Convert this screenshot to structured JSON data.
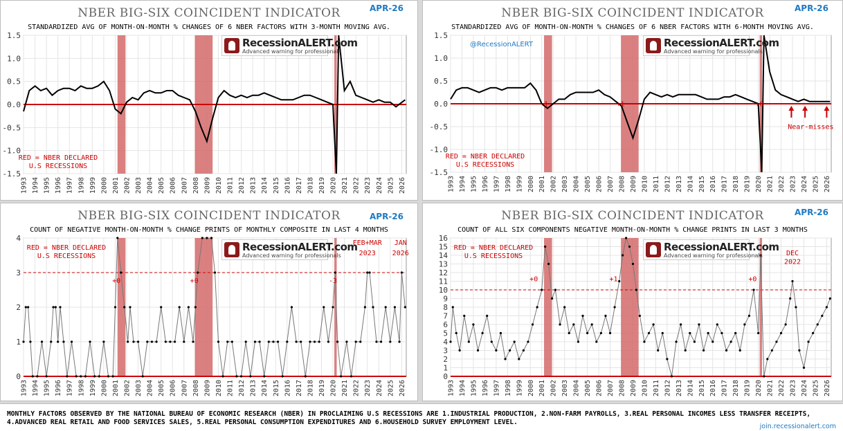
{
  "footer": {
    "line1": "MONTHLY FACTORS OBSERVED BY THE NATIONAL BUREAU OF ECONOMIC RESEARCH (NBER) IN PROCLAIMING U.S RECESSIONS ARE 1.INDUSTRIAL PRODUCTION, 2.NON-FARM PAYROLLS, 3.REAL PERSONAL INCOMES LESS TRANSFER RECEIPTS,",
    "line2": "4.ADVANCED REAL RETAIL AND FOOD SERVICES SALES, 5.REAL PERSONAL CONSUMPTION EXPENDITURES AND 6.HOUSEHOLD SURVEY EMPLOYMENT LEVEL.",
    "url": "join.recessionalert.com"
  },
  "logo": {
    "name": "RecessionALERT.com",
    "tagline": "Advanced warning for professionals"
  },
  "handle": "@RecessionALERT",
  "colors": {
    "recession": "#d46a6a",
    "red": "#cc0000",
    "series": "#000000",
    "raw": "#b0b0b0",
    "date": "#1f7ac3"
  },
  "recessions": [
    [
      2001.2,
      2001.9
    ],
    [
      2007.95,
      2009.5
    ],
    [
      2020.12,
      2020.33
    ]
  ],
  "x_ticks": [
    "1993",
    "1994",
    "1995",
    "1996",
    "1997",
    "1998",
    "1999",
    "2000",
    "2001",
    "2002",
    "2003",
    "2004",
    "2005",
    "2006",
    "2007",
    "2008",
    "2009",
    "2010",
    "2011",
    "2012",
    "2013",
    "2014",
    "2015",
    "2016",
    "2017",
    "2018",
    "2019",
    "2020",
    "2021",
    "2022",
    "2023",
    "2024",
    "2025",
    "2026"
  ],
  "chart_data": [
    {
      "id": "tl",
      "type": "line",
      "title": "NBER BIG-SIX COINCIDENT INDICATOR",
      "date": "APR-26",
      "subtitle": "STANDARDIZED AVG OF MONTH-ON-MONTH % CHANGES OF 6 NBER FACTORS WITH 3-MONTH MOVING AVG.",
      "xlim": [
        1993,
        2026.4
      ],
      "ylim": [
        -1.5,
        1.5
      ],
      "y_ticks": [
        "1.5",
        "1.0",
        "0.5",
        "0.0",
        "-0.5",
        "-1.0",
        "-1.5"
      ],
      "y_tick_values": [
        1.5,
        1.0,
        0.5,
        0.0,
        -0.5,
        -1.0,
        -1.5
      ],
      "zero_line": 0,
      "legend_text": [
        "RED = NBER DECLARED",
        "U.S RECESSIONS"
      ],
      "series": [
        {
          "name": "3-month moving average",
          "x": [
            1993,
            1993.5,
            1994,
            1994.5,
            1995,
            1995.5,
            1996,
            1996.5,
            1997,
            1997.5,
            1998,
            1998.5,
            1999,
            1999.5,
            2000,
            2000.5,
            2001,
            2001.5,
            2002,
            2002.5,
            2003,
            2003.5,
            2004,
            2004.5,
            2005,
            2005.5,
            2006,
            2006.5,
            2007,
            2007.5,
            2008,
            2008.5,
            2009,
            2009.5,
            2010,
            2010.5,
            2011,
            2011.5,
            2012,
            2012.5,
            2013,
            2013.5,
            2014,
            2014.5,
            2015,
            2015.5,
            2016,
            2016.5,
            2017,
            2017.5,
            2018,
            2018.5,
            2019,
            2019.5,
            2020,
            2020.3,
            2020.5,
            2021,
            2021.5,
            2022,
            2022.5,
            2023,
            2023.5,
            2024,
            2024.5,
            2025,
            2025.5,
            2026.3
          ],
          "y": [
            -0.15,
            0.3,
            0.4,
            0.3,
            0.35,
            0.2,
            0.3,
            0.35,
            0.35,
            0.3,
            0.4,
            0.35,
            0.35,
            0.4,
            0.5,
            0.3,
            -0.1,
            -0.2,
            0.05,
            0.15,
            0.1,
            0.25,
            0.3,
            0.25,
            0.25,
            0.3,
            0.3,
            0.2,
            0.15,
            0.1,
            -0.15,
            -0.5,
            -0.8,
            -0.3,
            0.15,
            0.3,
            0.2,
            0.15,
            0.2,
            0.15,
            0.2,
            0.2,
            0.25,
            0.2,
            0.15,
            0.1,
            0.1,
            0.1,
            0.15,
            0.2,
            0.2,
            0.15,
            0.1,
            0.05,
            0.0,
            -1.5,
            1.5,
            0.3,
            0.5,
            0.2,
            0.15,
            0.1,
            0.05,
            0.1,
            0.05,
            0.05,
            -0.05,
            0.1
          ]
        }
      ]
    },
    {
      "id": "tr",
      "type": "line",
      "title": "NBER BIG-SIX COINCIDENT INDICATOR",
      "date": "APR-26",
      "subtitle": "STANDARDIZED AVG OF MONTH-ON-MONTH % CHANGES OF 6 NBER FACTORS WITH 6-MONTH MOVING AVG.",
      "xlim": [
        1993,
        2026.4
      ],
      "ylim": [
        -1.5,
        1.5
      ],
      "y_ticks": [
        "1.5",
        "1.0",
        "0.5",
        "0.0",
        "-0.5",
        "-1.0",
        "-1.5"
      ],
      "y_tick_values": [
        1.5,
        1.0,
        0.5,
        0.0,
        -0.5,
        -1.0,
        -1.5
      ],
      "zero_line": 0,
      "legend_text": [
        "RED = NBER DECLARED",
        "U.S RECESSIONS"
      ],
      "annotations": [
        {
          "text": "-1",
          "x": 2001.2,
          "y": -0.05
        },
        {
          "text": "+1",
          "x": 2007.9,
          "y": -0.05
        },
        {
          "text": "+0",
          "x": 2020.1,
          "y": -0.05
        },
        {
          "text": "Near-misses",
          "x": 2024.6,
          "y": -0.55
        }
      ],
      "near_miss_arrows": [
        2022.9,
        2024.1,
        2026.0
      ],
      "series": [
        {
          "name": "6-month moving average",
          "x": [
            1993,
            1993.5,
            1994,
            1994.5,
            1995,
            1995.5,
            1996,
            1996.5,
            1997,
            1997.5,
            1998,
            1998.5,
            1999,
            1999.5,
            2000,
            2000.5,
            2001,
            2001.5,
            2002,
            2002.5,
            2003,
            2003.5,
            2004,
            2004.5,
            2005,
            2005.5,
            2006,
            2006.5,
            2007,
            2007.5,
            2008,
            2008.5,
            2009,
            2009.5,
            2010,
            2010.5,
            2011,
            2011.5,
            2012,
            2012.5,
            2013,
            2013.5,
            2014,
            2014.5,
            2015,
            2015.5,
            2016,
            2016.5,
            2017,
            2017.5,
            2018,
            2018.5,
            2019,
            2019.5,
            2020,
            2020.3,
            2020.5,
            2021,
            2021.5,
            2022,
            2022.5,
            2023,
            2023.5,
            2024,
            2024.5,
            2025,
            2025.5,
            2026.3
          ],
          "y": [
            0.1,
            0.3,
            0.35,
            0.35,
            0.3,
            0.25,
            0.3,
            0.35,
            0.35,
            0.3,
            0.35,
            0.35,
            0.35,
            0.35,
            0.45,
            0.3,
            0.0,
            -0.1,
            0.0,
            0.1,
            0.1,
            0.2,
            0.25,
            0.25,
            0.25,
            0.25,
            0.3,
            0.2,
            0.15,
            0.05,
            -0.05,
            -0.4,
            -0.75,
            -0.35,
            0.1,
            0.25,
            0.2,
            0.15,
            0.2,
            0.15,
            0.2,
            0.2,
            0.2,
            0.2,
            0.15,
            0.1,
            0.1,
            0.1,
            0.15,
            0.15,
            0.2,
            0.15,
            0.1,
            0.05,
            0.0,
            -1.5,
            1.5,
            0.7,
            0.3,
            0.2,
            0.15,
            0.1,
            0.05,
            0.1,
            0.05,
            0.05,
            0.05,
            0.05
          ]
        }
      ]
    },
    {
      "id": "bl",
      "type": "line",
      "title": "NBER BIG-SIX COINCIDENT INDICATOR",
      "date": "APR-26",
      "subtitle": "COUNT OF NEGATIVE MONTH-ON-MONTH % CHANGE PRINTS OF MONTHLY COMPOSITE IN LAST 4 MONTHS",
      "xlim": [
        1993,
        2026.4
      ],
      "ylim": [
        0,
        4
      ],
      "y_ticks": [
        "4",
        "3",
        "2",
        "1",
        "0"
      ],
      "y_tick_values": [
        4,
        3,
        2,
        1,
        0
      ],
      "threshold": 3,
      "legend_text": [
        "RED = NBER DECLARED",
        "U.S RECESSIONS"
      ],
      "annotations": [
        {
          "text": "+0",
          "x": 2001.1,
          "y": 2.7
        },
        {
          "text": "+0",
          "x": 2007.9,
          "y": 2.7
        },
        {
          "text": "-3",
          "x": 2020.0,
          "y": 2.7
        },
        {
          "text": "FEB+MAR",
          "x": 2023.0,
          "y": 3.8
        },
        {
          "text": "2023",
          "x": 2023.0,
          "y": 3.5
        },
        {
          "text": "JAN",
          "x": 2025.9,
          "y": 3.8
        },
        {
          "text": "2026",
          "x": 2025.9,
          "y": 3.5
        }
      ],
      "series": [
        {
          "name": "count",
          "x": [
            1993,
            1993.2,
            1993.4,
            1993.6,
            1993.8,
            1994.2,
            1994.6,
            1995,
            1995.4,
            1995.6,
            1995.8,
            1996,
            1996.2,
            1996.5,
            1996.8,
            1997.2,
            1997.6,
            1998,
            1998.4,
            1998.8,
            1999.2,
            1999.6,
            2000,
            2000.4,
            2000.8,
            2001,
            2001.2,
            2001.5,
            2001.8,
            2002.1,
            2002.3,
            2002.6,
            2003,
            2003.4,
            2003.8,
            2004.2,
            2004.6,
            2005,
            2005.4,
            2005.8,
            2006.2,
            2006.6,
            2007,
            2007.4,
            2007.8,
            2008,
            2008.2,
            2008.6,
            2009,
            2009.4,
            2009.7,
            2010,
            2010.4,
            2010.8,
            2011.2,
            2011.6,
            2012,
            2012.4,
            2012.8,
            2013.2,
            2013.6,
            2014,
            2014.4,
            2014.8,
            2015.2,
            2015.6,
            2016,
            2016.4,
            2016.8,
            2017.2,
            2017.6,
            2018,
            2018.4,
            2018.8,
            2019.2,
            2019.6,
            2020,
            2020.2,
            2020.4,
            2020.7,
            2021.2,
            2021.6,
            2022,
            2022.4,
            2022.8,
            2023,
            2023.2,
            2023.5,
            2023.8,
            2024.2,
            2024.6,
            2025,
            2025.4,
            2025.8,
            2026,
            2026.3
          ],
          "y": [
            1,
            2,
            2,
            1,
            0,
            0,
            1,
            0,
            1,
            2,
            2,
            1,
            2,
            1,
            0,
            1,
            0,
            0,
            0,
            1,
            0,
            0,
            1,
            0,
            0,
            2,
            4,
            3,
            2,
            1,
            2,
            1,
            1,
            0,
            1,
            1,
            1,
            2,
            1,
            1,
            1,
            2,
            1,
            2,
            1,
            2,
            3,
            4,
            4,
            4,
            3,
            1,
            0,
            1,
            1,
            0,
            0,
            1,
            0,
            1,
            1,
            0,
            1,
            1,
            1,
            0,
            1,
            2,
            1,
            1,
            0,
            1,
            1,
            1,
            2,
            1,
            2,
            3,
            1,
            0,
            1,
            0,
            1,
            1,
            2,
            3,
            3,
            2,
            1,
            1,
            2,
            1,
            2,
            1,
            3,
            2
          ]
        }
      ]
    },
    {
      "id": "br",
      "type": "line",
      "title": "NBER BIG-SIX COINCIDENT INDICATOR",
      "date": "APR-26",
      "subtitle": "COUNT OF ALL SIX COMPONENTS NEGATIVE MONTH-ON-MONTH % CHANGE PRINTS IN LAST 3 MONTHS",
      "xlim": [
        1993,
        2026.4
      ],
      "ylim": [
        0,
        16
      ],
      "y_ticks": [
        "16",
        "15",
        "14",
        "13",
        "12",
        "11",
        "10",
        "9",
        "8",
        "7",
        "6",
        "5",
        "4",
        "3",
        "2",
        "1",
        "0"
      ],
      "y_tick_values": [
        16,
        15,
        14,
        13,
        12,
        11,
        10,
        9,
        8,
        7,
        6,
        5,
        4,
        3,
        2,
        1,
        0
      ],
      "threshold": 10,
      "legend_text": [
        "RED = NBER DECLARED",
        "U.S RECESSIONS"
      ],
      "annotations": [
        {
          "text": "+0",
          "x": 2000.3,
          "y": 11
        },
        {
          "text": "+1",
          "x": 2007.3,
          "y": 11
        },
        {
          "text": "+0",
          "x": 2019.5,
          "y": 11
        },
        {
          "text": "DEC",
          "x": 2023.0,
          "y": 14
        },
        {
          "text": "2022",
          "x": 2023.0,
          "y": 13
        }
      ],
      "series": [
        {
          "name": "count",
          "x": [
            1993,
            1993.2,
            1993.5,
            1993.8,
            1994.2,
            1994.6,
            1995,
            1995.4,
            1995.8,
            1996.2,
            1996.6,
            1997,
            1997.4,
            1997.8,
            1998.2,
            1998.6,
            1999,
            1999.4,
            1999.8,
            2000.2,
            2000.6,
            2001,
            2001.3,
            2001.6,
            2001.9,
            2002.2,
            2002.6,
            2003,
            2003.4,
            2003.8,
            2004.2,
            2004.6,
            2005,
            2005.4,
            2005.8,
            2006.2,
            2006.6,
            2007,
            2007.4,
            2007.8,
            2008.1,
            2008.4,
            2008.7,
            2009,
            2009.3,
            2009.6,
            2010,
            2010.4,
            2010.8,
            2011.2,
            2011.6,
            2012,
            2012.4,
            2012.8,
            2013.2,
            2013.6,
            2014,
            2014.4,
            2014.8,
            2015.2,
            2015.6,
            2016,
            2016.4,
            2016.8,
            2017.2,
            2017.6,
            2018,
            2018.4,
            2018.8,
            2019.2,
            2019.6,
            2020,
            2020.2,
            2020.5,
            2020.8,
            2021.2,
            2021.6,
            2022,
            2022.4,
            2022.8,
            2023,
            2023.3,
            2023.6,
            2024,
            2024.4,
            2024.8,
            2025.2,
            2025.6,
            2026,
            2026.3
          ],
          "y": [
            4,
            8,
            5,
            3,
            7,
            4,
            6,
            3,
            5,
            7,
            4,
            3,
            5,
            2,
            3,
            4,
            2,
            3,
            4,
            6,
            8,
            10,
            15,
            13,
            9,
            10,
            6,
            8,
            5,
            6,
            4,
            7,
            5,
            6,
            4,
            5,
            7,
            5,
            8,
            11,
            14,
            16,
            15,
            13,
            10,
            7,
            4,
            5,
            6,
            3,
            5,
            2,
            0,
            4,
            6,
            3,
            5,
            4,
            6,
            3,
            5,
            4,
            6,
            5,
            3,
            4,
            5,
            3,
            6,
            7,
            10,
            5,
            14,
            0,
            2,
            3,
            4,
            5,
            6,
            9,
            11,
            8,
            3,
            1,
            4,
            5,
            6,
            7,
            8,
            9
          ]
        }
      ]
    }
  ]
}
